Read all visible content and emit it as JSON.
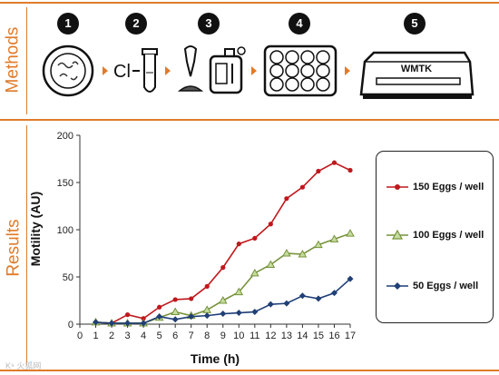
{
  "sections": {
    "methods_label": "Methods",
    "results_label": "Results"
  },
  "method_steps": [
    {
      "number": "1",
      "icon": "petri-dish-icon"
    },
    {
      "number": "2",
      "icon": "tube-icon"
    },
    {
      "number": "3",
      "icon": "pipette-icon"
    },
    {
      "number": "4",
      "icon": "well-plate-icon"
    },
    {
      "number": "5",
      "icon": "wmtk-device-icon"
    }
  ],
  "device_label": "WMTK",
  "watermark": "K⁹ 火狐网",
  "colors": {
    "accent": "#e07b2a",
    "series_150": "#c0181c",
    "series_100": "#77933c",
    "series_50": "#1f3f77"
  },
  "chart_data": {
    "type": "line",
    "xlabel": "Time (h)",
    "ylabel": "Motility (AU)",
    "xlim": [
      0,
      17
    ],
    "ylim": [
      0,
      200
    ],
    "x_ticks": [
      "0",
      "1",
      "2",
      "3",
      "4",
      "5",
      "6",
      "7",
      "8",
      "9",
      "10",
      "11",
      "12",
      "13",
      "14",
      "15",
      "16",
      "17"
    ],
    "y_ticks": [
      "0",
      "50",
      "100",
      "150",
      "200"
    ],
    "x": [
      1,
      2,
      3,
      4,
      5,
      6,
      7,
      8,
      9,
      10,
      11,
      12,
      13,
      14,
      15,
      16,
      17
    ],
    "legend_position": "right",
    "grid": false,
    "series": [
      {
        "name": "150 Eggs / well",
        "marker": "circle",
        "color": "#c0181c",
        "values": [
          2,
          1,
          10,
          6,
          18,
          26,
          27,
          40,
          60,
          85,
          91,
          106,
          133,
          145,
          162,
          171,
          163
        ]
      },
      {
        "name": "100 Eggs / well",
        "marker": "triangle",
        "color": "#77933c",
        "values": [
          2,
          1,
          1,
          1,
          7,
          13,
          9,
          15,
          25,
          34,
          54,
          63,
          75,
          74,
          84,
          90,
          96
        ]
      },
      {
        "name": "50 Eggs / well",
        "marker": "diamond",
        "color": "#1f3f77",
        "values": [
          2,
          1,
          1,
          1,
          8,
          5,
          8,
          9,
          11,
          12,
          13,
          21,
          22,
          30,
          27,
          33,
          48
        ]
      }
    ]
  }
}
